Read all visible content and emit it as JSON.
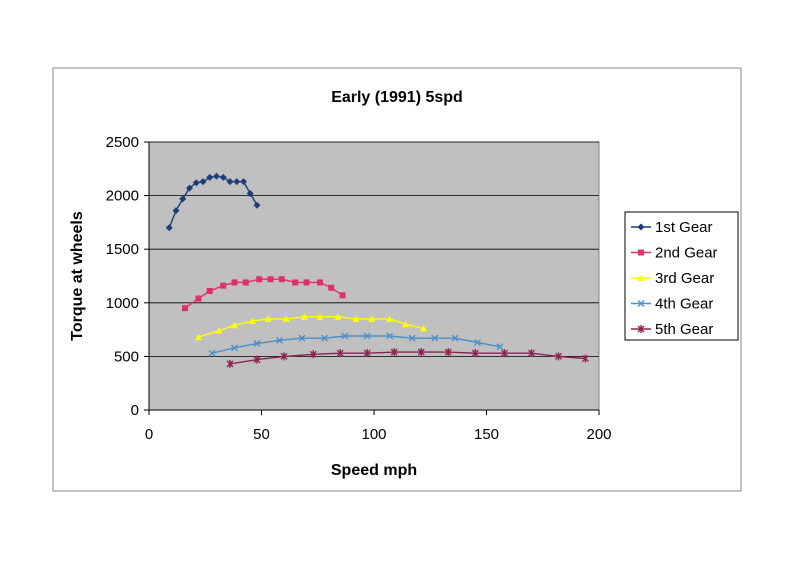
{
  "chart_data": {
    "type": "line",
    "title": "Early (1991) 5spd",
    "xlabel": "Speed mph",
    "ylabel": "Torque at wheels",
    "xlim": [
      0,
      200
    ],
    "ylim": [
      0,
      2500
    ],
    "xticks": [
      "0",
      "50",
      "100",
      "150",
      "200"
    ],
    "yticks": [
      "0",
      "500",
      "1000",
      "1500",
      "2000",
      "2500"
    ],
    "grid": "horizontal",
    "plot_background": "#c0c0c0",
    "legend_position": "right",
    "series": [
      {
        "name": "1st Gear",
        "color": "#1f3d7a",
        "marker": "diamond",
        "x": [
          9,
          12,
          15,
          18,
          21,
          24,
          27,
          30,
          33,
          36,
          39,
          42,
          45,
          48
        ],
        "y": [
          1700,
          1860,
          1970,
          2070,
          2120,
          2130,
          2170,
          2180,
          2170,
          2130,
          2130,
          2130,
          2020,
          1910
        ]
      },
      {
        "name": "2nd Gear",
        "color": "#e0306a",
        "marker": "square",
        "x": [
          16,
          22,
          27,
          33,
          38,
          43,
          49,
          54,
          59,
          65,
          70,
          76,
          81,
          86
        ],
        "y": [
          950,
          1040,
          1110,
          1160,
          1190,
          1190,
          1220,
          1220,
          1220,
          1190,
          1190,
          1190,
          1140,
          1070
        ]
      },
      {
        "name": "3rd Gear",
        "color": "#ffff00",
        "marker": "triangle",
        "x": [
          22,
          31,
          38,
          46,
          53,
          61,
          69,
          76,
          84,
          92,
          99,
          107,
          114,
          122
        ],
        "y": [
          680,
          740,
          790,
          830,
          850,
          850,
          870,
          870,
          870,
          850,
          850,
          850,
          800,
          760
        ]
      },
      {
        "name": "4th Gear",
        "color": "#4a90c8",
        "marker": "x",
        "x": [
          28,
          38,
          48,
          58,
          68,
          78,
          87,
          97,
          107,
          117,
          127,
          136,
          146,
          156
        ],
        "y": [
          530,
          580,
          620,
          650,
          670,
          670,
          690,
          690,
          690,
          670,
          670,
          670,
          630,
          590
        ]
      },
      {
        "name": "5th Gear",
        "color": "#8b2252",
        "marker": "star",
        "x": [
          36,
          48,
          60,
          73,
          85,
          97,
          109,
          121,
          133,
          145,
          158,
          170,
          182,
          194
        ],
        "y": [
          430,
          470,
          500,
          520,
          530,
          530,
          540,
          540,
          540,
          530,
          530,
          530,
          500,
          480
        ]
      }
    ]
  }
}
